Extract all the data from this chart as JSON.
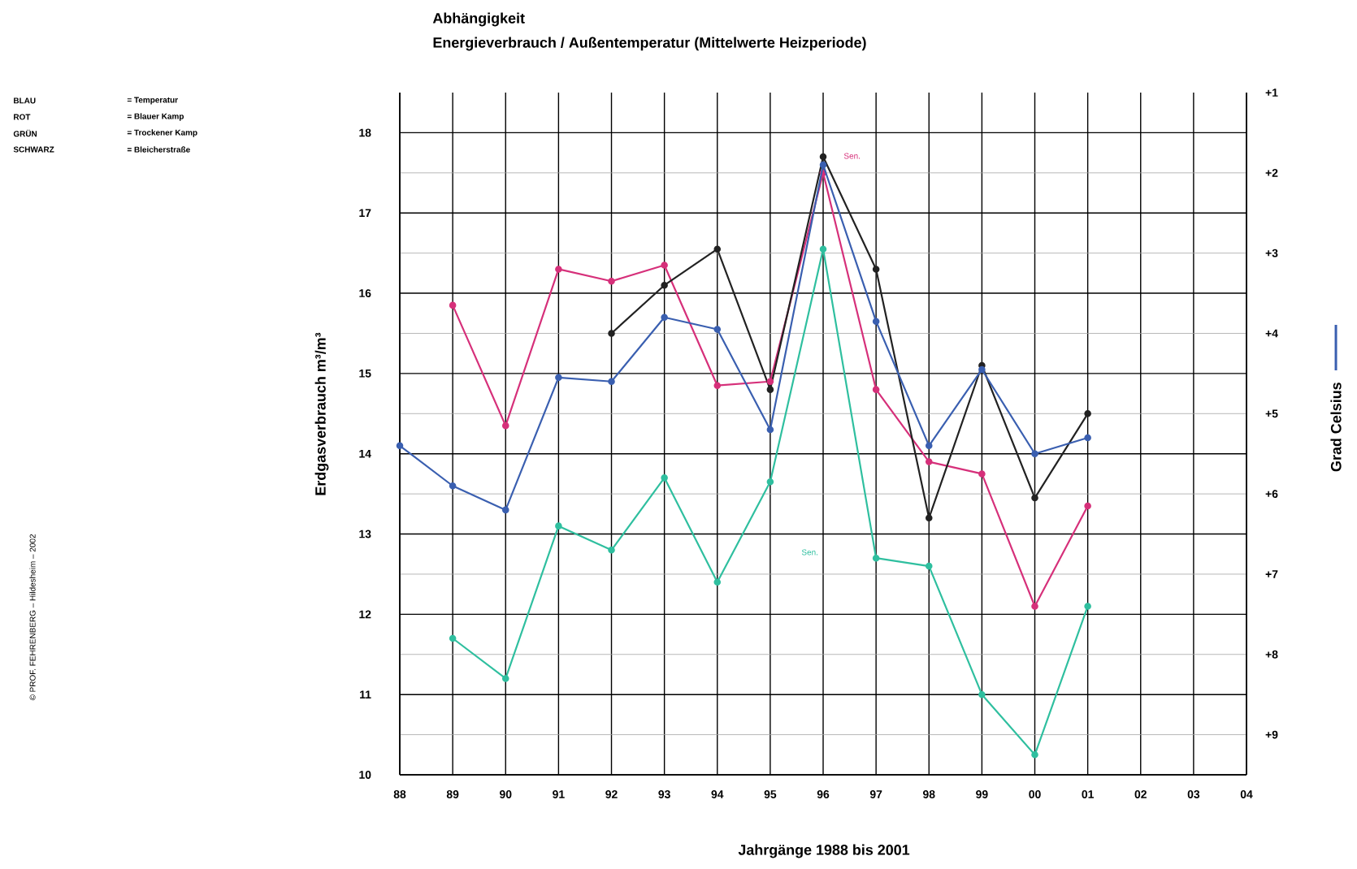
{
  "chart_data": {
    "type": "line",
    "title": "Abhängigkeit",
    "subtitle": "Energieverbrauch / Außentemperatur (Mittelwerte Heizperiode)",
    "xlabel": "Jahrgänge  1988 bis 2001",
    "ylabel": "Erdgasverbrauch  m³/m³",
    "y2label": "Grad Celsius",
    "categories": [
      "88",
      "89",
      "90",
      "91",
      "92",
      "93",
      "94",
      "95",
      "96",
      "97",
      "98",
      "99",
      "00",
      "01",
      "02",
      "03",
      "04"
    ],
    "ylim": [
      10,
      18.5
    ],
    "yticks": [
      10,
      11,
      12,
      13,
      14,
      15,
      16,
      17,
      18
    ],
    "y2lim": [
      9.5,
      1
    ],
    "y2ticks": [
      {
        "value": 1,
        "label": "+1"
      },
      {
        "value": 2,
        "label": "+2"
      },
      {
        "value": 3,
        "label": "+3"
      },
      {
        "value": 4,
        "label": "+4"
      },
      {
        "value": 5,
        "label": "+5"
      },
      {
        "value": 6,
        "label": "+6"
      },
      {
        "value": 7,
        "label": "+7"
      },
      {
        "value": 8,
        "label": "+8"
      },
      {
        "value": 9,
        "label": "+9"
      }
    ],
    "grid": true,
    "marker": "circle",
    "line_style": "solid",
    "series": [
      {
        "color": "#3a5fb0",
        "axis": "y2",
        "values": [
          5.4,
          5.9,
          6.2,
          4.55,
          4.6,
          3.8,
          3.95,
          5.2,
          1.9,
          3.85,
          5.4,
          4.45,
          5.5,
          5.3,
          null,
          null,
          null
        ]
      },
      {
        "color": "#d6307a",
        "values": [
          null,
          15.85,
          14.35,
          16.3,
          16.15,
          16.35,
          14.85,
          14.9,
          17.5,
          14.8,
          13.9,
          13.75,
          12.1,
          13.35,
          null,
          null,
          null
        ]
      },
      {
        "color": "#2fbf9f",
        "values": [
          null,
          11.7,
          11.2,
          13.1,
          12.8,
          13.7,
          12.4,
          13.65,
          16.55,
          12.7,
          12.6,
          11.0,
          10.25,
          12.1,
          null,
          null,
          null
        ]
      },
      {
        "color": "#222222",
        "values": [
          null,
          null,
          null,
          null,
          15.5,
          16.1,
          16.55,
          14.8,
          17.7,
          16.3,
          13.2,
          15.1,
          13.45,
          14.5,
          null,
          null,
          null
        ]
      }
    ],
    "annotations": [
      "BLAU",
      "= Temperatur",
      "ROT",
      "= Blauer Kamp",
      "GRÜN",
      "= Trockener Kamp",
      "SCHWARZ",
      "= Bleicherstraße",
      "Sen.",
      "Sen.",
      "© PROF. FEHRENBERG – Hildesheim – 2002"
    ]
  }
}
